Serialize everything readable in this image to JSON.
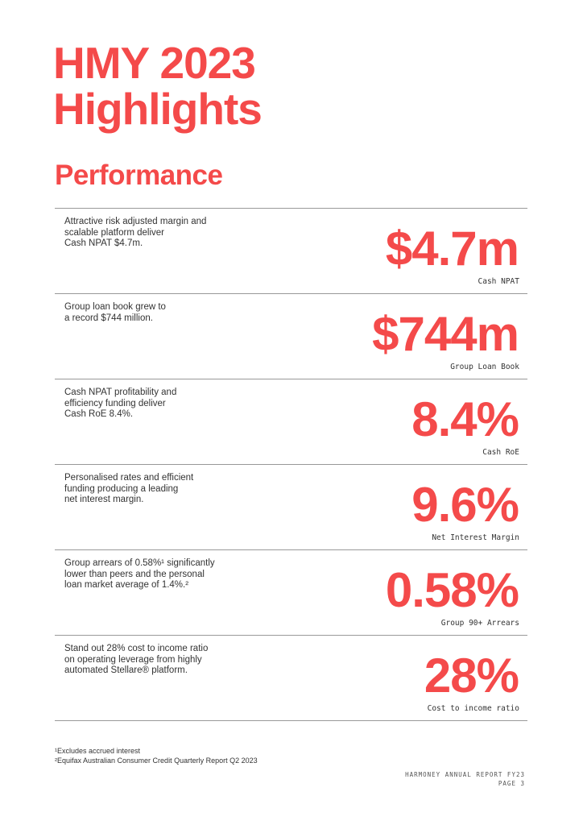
{
  "header": {
    "title_lines": [
      "HMY 2023",
      "Highlights"
    ],
    "section": "Performance"
  },
  "rows": [
    {
      "description_lines": [
        "Attractive risk adjusted margin and",
        "scalable platform deliver",
        "Cash NPAT $4.7m."
      ],
      "value": "$4.7m",
      "label": "Cash NPAT"
    },
    {
      "description_lines": [
        "Group loan book grew to",
        "a record $744 million."
      ],
      "value": "$744m",
      "label": "Group Loan Book"
    },
    {
      "description_lines": [
        "Cash NPAT profitability and",
        "efficiency funding deliver",
        "Cash RoE 8.4%."
      ],
      "value": "8.4%",
      "label": "Cash RoE"
    },
    {
      "description_lines": [
        "Personalised rates and efficient",
        "funding producing a leading",
        "net interest margin."
      ],
      "value": "9.6%",
      "label": "Net Interest Margin"
    },
    {
      "description_lines": [
        "Group arrears of 0.58%¹ significantly",
        "lower than peers and the personal",
        "loan market average of 1.4%.²"
      ],
      "value": "0.58%",
      "label": "Group 90+ Arrears"
    },
    {
      "description_lines": [
        "Stand out 28% cost to income ratio",
        "on operating leverage from highly",
        "automated Stellare® platform."
      ],
      "value": "28%",
      "label": "Cost to income ratio"
    }
  ],
  "footnotes": [
    "¹Excludes accrued interest",
    "²Equifax Australian Consumer Credit Quarterly Report Q2 2023"
  ],
  "footer": [
    "HARMONEY ANNUAL REPORT FY23",
    "PAGE 3"
  ]
}
